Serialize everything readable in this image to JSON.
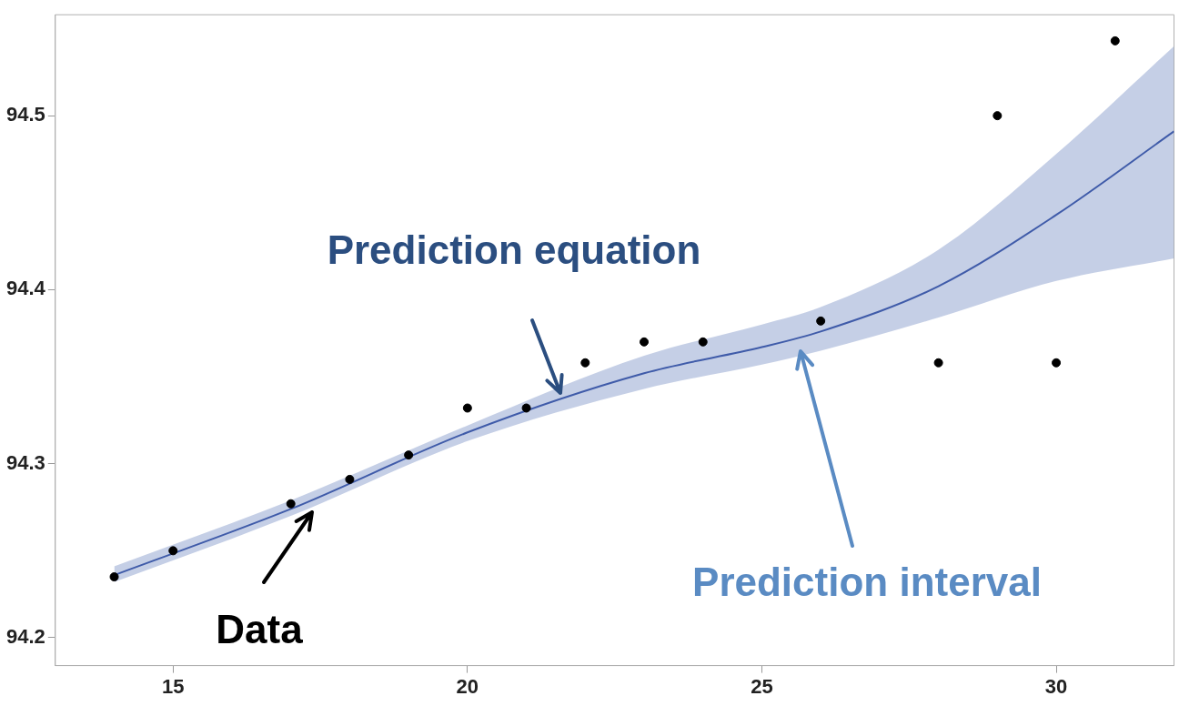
{
  "chart_data": {
    "type": "scatter",
    "xlim": [
      13,
      32
    ],
    "xticks": [
      15,
      20,
      25,
      30
    ],
    "ylim": [
      94.184,
      94.558
    ],
    "yticks": [
      94.2,
      94.3,
      94.4,
      94.5
    ],
    "grid": false,
    "legend": false,
    "marker": "circle",
    "series": [
      {
        "type": "scatter",
        "color": "#000000",
        "x": [
          14,
          15,
          17,
          18,
          19,
          20,
          21,
          22,
          23,
          24,
          26,
          28,
          29,
          30,
          31
        ],
        "values": [
          94.235,
          94.25,
          94.277,
          94.291,
          94.305,
          94.332,
          94.332,
          94.358,
          94.37,
          94.37,
          94.382,
          94.358,
          94.5,
          94.358,
          94.543
        ]
      },
      {
        "type": "line",
        "color": "#3f5ba9",
        "marker": "none",
        "x": [
          14,
          17,
          20,
          23,
          25,
          26,
          28,
          30,
          32
        ],
        "values": [
          94.236,
          94.274,
          94.318,
          94.352,
          94.367,
          94.376,
          94.402,
          94.443,
          94.491
        ],
        "lower": [
          94.232,
          94.27,
          94.313,
          94.343,
          94.357,
          94.365,
          94.384,
          94.405,
          94.418
        ],
        "upper": [
          94.241,
          94.279,
          94.322,
          94.362,
          94.38,
          94.39,
          94.423,
          94.478,
          94.54
        ]
      }
    ],
    "annotations": [
      "Prediction equation",
      "Prediction interval",
      "Data"
    ]
  }
}
